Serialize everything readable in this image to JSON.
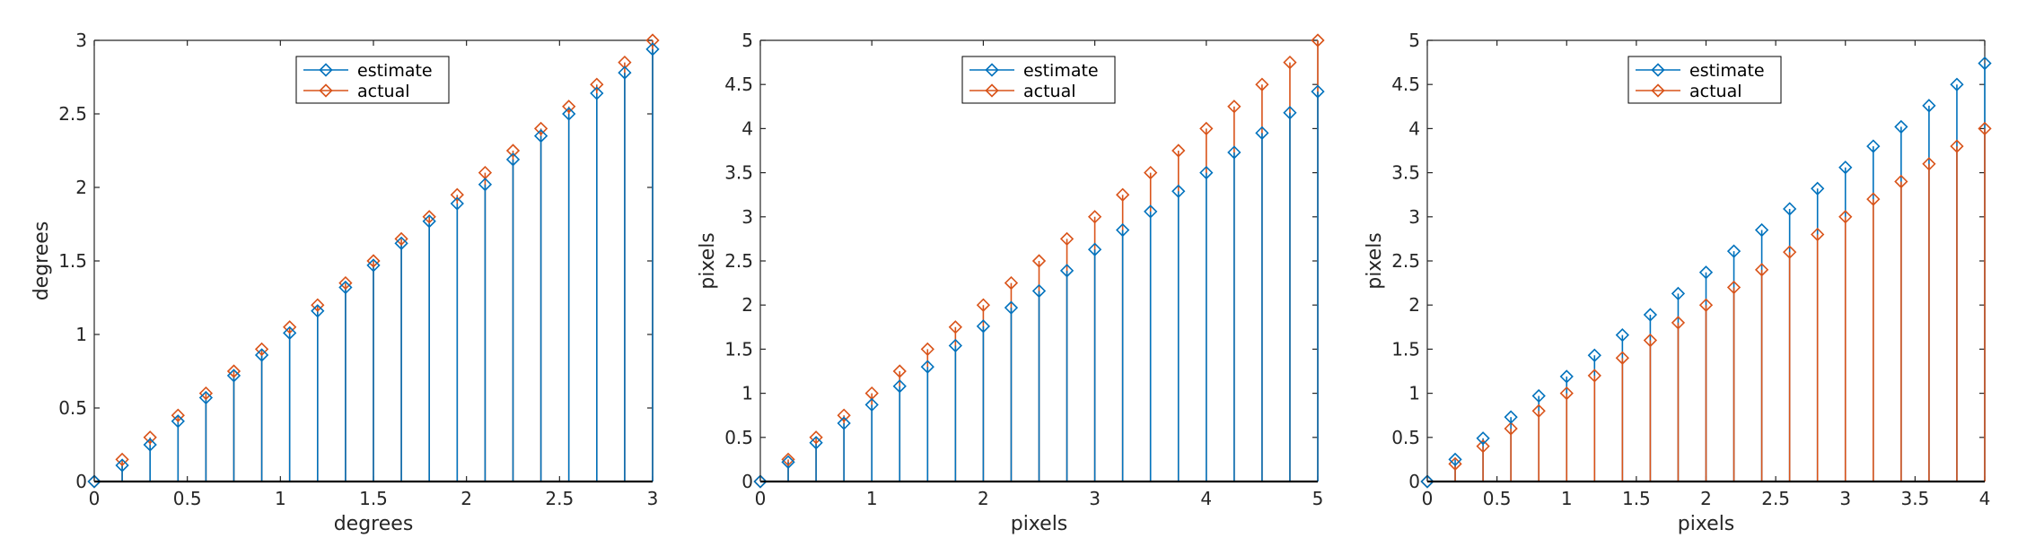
{
  "colors": {
    "estimate": "#0072BD",
    "actual": "#D95319",
    "axis": "#262626",
    "legend_box": "#000000"
  },
  "legend": {
    "labels": [
      "estimate",
      "actual"
    ],
    "location": "top-center"
  },
  "chart_data": [
    {
      "type": "stem",
      "xlabel": "degrees",
      "ylabel": "degrees",
      "xlim": [
        0,
        3
      ],
      "ylim": [
        0,
        3
      ],
      "xticks": [
        "0",
        "0.5",
        "1",
        "1.5",
        "2",
        "2.5",
        "3"
      ],
      "yticks": [
        "0",
        "0.5",
        "1",
        "1.5",
        "2",
        "2.5",
        "3"
      ],
      "x": [
        0,
        0.15,
        0.3,
        0.45,
        0.6,
        0.75,
        0.9,
        1.05,
        1.2,
        1.35,
        1.5,
        1.65,
        1.8,
        1.95,
        2.1,
        2.25,
        2.4,
        2.55,
        2.7,
        2.85,
        3.0
      ],
      "series": [
        {
          "name": "estimate",
          "values": [
            0,
            0.11,
            0.25,
            0.41,
            0.57,
            0.72,
            0.86,
            1.01,
            1.16,
            1.32,
            1.47,
            1.62,
            1.77,
            1.89,
            2.02,
            2.19,
            2.35,
            2.5,
            2.64,
            2.78,
            2.94
          ]
        },
        {
          "name": "actual",
          "values": [
            0,
            0.15,
            0.3,
            0.45,
            0.6,
            0.75,
            0.9,
            1.05,
            1.2,
            1.35,
            1.5,
            1.65,
            1.8,
            1.95,
            2.1,
            2.25,
            2.4,
            2.55,
            2.7,
            2.85,
            3.0
          ]
        }
      ]
    },
    {
      "type": "stem",
      "xlabel": "pixels",
      "ylabel": "pixels",
      "xlim": [
        0,
        5
      ],
      "ylim": [
        0,
        5
      ],
      "xticks": [
        "0",
        "1",
        "2",
        "3",
        "4",
        "5"
      ],
      "yticks": [
        "0",
        "0.5",
        "1",
        "1.5",
        "2",
        "2.5",
        "3",
        "3.5",
        "4",
        "4.5",
        "5"
      ],
      "x": [
        0,
        0.25,
        0.5,
        0.75,
        1.0,
        1.25,
        1.5,
        1.75,
        2.0,
        2.25,
        2.5,
        2.75,
        3.0,
        3.25,
        3.5,
        3.75,
        4.0,
        4.25,
        4.5,
        4.75,
        5.0
      ],
      "series": [
        {
          "name": "estimate",
          "values": [
            0,
            0.22,
            0.44,
            0.66,
            0.87,
            1.08,
            1.3,
            1.54,
            1.76,
            1.97,
            2.16,
            2.39,
            2.63,
            2.85,
            3.06,
            3.29,
            3.5,
            3.73,
            3.95,
            4.18,
            4.42
          ]
        },
        {
          "name": "actual",
          "values": [
            0,
            0.25,
            0.5,
            0.75,
            1.0,
            1.25,
            1.5,
            1.75,
            2.0,
            2.25,
            2.5,
            2.75,
            3.0,
            3.25,
            3.5,
            3.75,
            4.0,
            4.25,
            4.5,
            4.75,
            5.0
          ]
        }
      ]
    },
    {
      "type": "stem",
      "xlabel": "pixels",
      "ylabel": "pixels",
      "xlim": [
        0,
        4
      ],
      "ylim": [
        0,
        5
      ],
      "xticks": [
        "0",
        "0.5",
        "1",
        "1.5",
        "2",
        "2.5",
        "3",
        "3.5",
        "4"
      ],
      "yticks": [
        "0",
        "0.5",
        "1",
        "1.5",
        "2",
        "2.5",
        "3",
        "3.5",
        "4",
        "4.5",
        "5"
      ],
      "x": [
        0,
        0.2,
        0.4,
        0.6,
        0.8,
        1.0,
        1.2,
        1.4,
        1.6,
        1.8,
        2.0,
        2.2,
        2.4,
        2.6,
        2.8,
        3.0,
        3.2,
        3.4,
        3.6,
        3.8,
        4.0
      ],
      "series": [
        {
          "name": "estimate",
          "values": [
            0,
            0.25,
            0.49,
            0.73,
            0.97,
            1.19,
            1.43,
            1.66,
            1.89,
            2.13,
            2.37,
            2.61,
            2.85,
            3.09,
            3.32,
            3.56,
            3.8,
            4.02,
            4.26,
            4.5,
            4.74
          ]
        },
        {
          "name": "actual",
          "values": [
            0,
            0.2,
            0.4,
            0.6,
            0.8,
            1.0,
            1.2,
            1.4,
            1.6,
            1.8,
            2.0,
            2.2,
            2.4,
            2.6,
            2.8,
            3.0,
            3.2,
            3.4,
            3.6,
            3.8,
            4.0
          ]
        }
      ]
    }
  ]
}
